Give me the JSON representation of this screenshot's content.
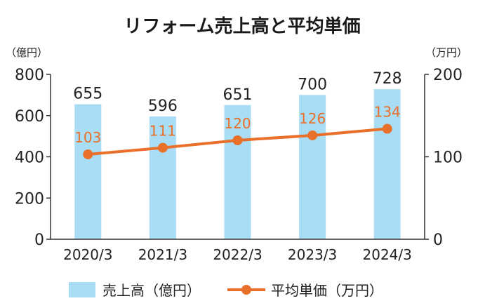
{
  "chart_data": {
    "type": "bar",
    "title": "リフォーム売上高と平均単価",
    "categories": [
      "2020/3",
      "2021/3",
      "2022/3",
      "2023/3",
      "2024/3"
    ],
    "series": [
      {
        "name": "売上高（億円）",
        "type": "bar",
        "axis": "left",
        "values": [
          655,
          596,
          651,
          700,
          728
        ],
        "color": "#a9dcf5"
      },
      {
        "name": "平均単価（万円）",
        "type": "line",
        "axis": "right",
        "values": [
          103,
          111,
          120,
          126,
          134
        ],
        "color": "#e8702a"
      }
    ],
    "left_axis": {
      "unit": "（億円）",
      "ylim": [
        0,
        800
      ],
      "ticks": [
        0,
        200,
        400,
        600,
        800
      ]
    },
    "right_axis": {
      "unit": "（万円）",
      "ylim": [
        0,
        200
      ],
      "ticks": [
        0,
        100,
        200
      ]
    },
    "grid": false,
    "legend_position": "bottom"
  }
}
